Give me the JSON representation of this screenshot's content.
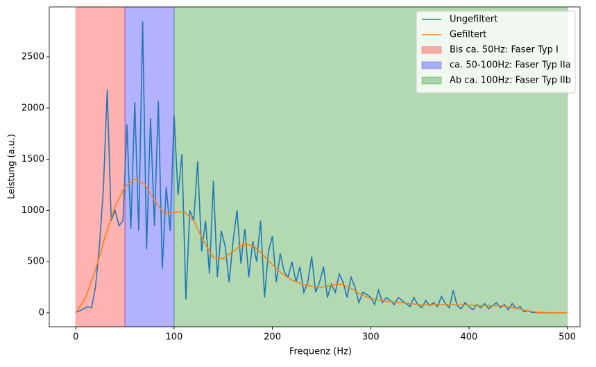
{
  "chart_data": {
    "type": "line",
    "xlabel": "Frequenz (Hz)",
    "ylabel": "Leistung (a.u.)",
    "xlim": [
      -27,
      513
    ],
    "ylim": [
      -136,
      2988
    ],
    "xticks": [
      0,
      100,
      200,
      300,
      400,
      500
    ],
    "yticks": [
      0,
      500,
      1000,
      1500,
      2000,
      2500
    ],
    "legend": "upper right",
    "spans": [
      {
        "label": "Bis ca. 50Hz: Faser Typ I",
        "x0": 0,
        "x1": 50,
        "color": "#ff0000"
      },
      {
        "label": "ca. 50-100Hz: Faser Typ IIa",
        "x0": 50,
        "x1": 100,
        "color": "#0000ff"
      },
      {
        "label": "Ab ca. 100Hz: Faser Typ IIb",
        "x0": 100,
        "x1": 500,
        "color": "#008000"
      }
    ],
    "series": [
      {
        "name": "Ungefiltert",
        "color": "#1f77b4",
        "x": [
          0,
          4,
          8,
          12,
          16,
          20,
          24,
          28,
          32,
          36,
          40,
          44,
          48,
          52,
          56,
          60,
          64,
          68,
          72,
          76,
          80,
          84,
          88,
          92,
          96,
          100,
          104,
          108,
          112,
          116,
          120,
          124,
          128,
          132,
          136,
          140,
          144,
          148,
          152,
          156,
          160,
          164,
          168,
          172,
          176,
          180,
          184,
          188,
          192,
          196,
          200,
          204,
          208,
          212,
          216,
          220,
          224,
          228,
          232,
          236,
          240,
          244,
          248,
          252,
          256,
          260,
          264,
          268,
          272,
          276,
          280,
          284,
          288,
          292,
          296,
          300,
          304,
          308,
          312,
          316,
          320,
          324,
          328,
          332,
          336,
          340,
          344,
          348,
          352,
          356,
          360,
          364,
          368,
          372,
          376,
          380,
          384,
          388,
          392,
          396,
          400,
          404,
          408,
          412,
          416,
          420,
          424,
          428,
          432,
          436,
          440,
          444,
          448,
          452,
          456,
          460,
          464,
          468,
          472,
          476,
          480,
          484,
          488,
          492,
          496,
          500
        ],
        "values": [
          5,
          20,
          40,
          60,
          50,
          250,
          650,
          1200,
          2180,
          900,
          1000,
          850,
          900,
          1840,
          820,
          2060,
          800,
          2850,
          620,
          1900,
          850,
          2070,
          430,
          1230,
          800,
          1930,
          1150,
          1550,
          130,
          1000,
          900,
          1480,
          600,
          900,
          380,
          1290,
          350,
          800,
          650,
          300,
          700,
          1000,
          480,
          820,
          350,
          700,
          500,
          900,
          150,
          600,
          750,
          300,
          580,
          400,
          350,
          500,
          300,
          450,
          200,
          300,
          550,
          200,
          300,
          450,
          150,
          280,
          200,
          380,
          300,
          150,
          350,
          250,
          100,
          200,
          180,
          150,
          80,
          220,
          100,
          150,
          120,
          80,
          150,
          120,
          90,
          60,
          150,
          80,
          50,
          120,
          70,
          100,
          60,
          160,
          90,
          50,
          220,
          70,
          40,
          100,
          60,
          30,
          80,
          50,
          90,
          40,
          70,
          100,
          50,
          80,
          30,
          90,
          40,
          60,
          10,
          20,
          5,
          3,
          2,
          1,
          1,
          1,
          1,
          1,
          1,
          1
        ]
      },
      {
        "name": "Gefiltert",
        "color": "#ff7f0e",
        "x": [
          0,
          10,
          20,
          30,
          40,
          50,
          60,
          70,
          80,
          90,
          100,
          110,
          120,
          130,
          140,
          150,
          160,
          170,
          180,
          190,
          200,
          210,
          220,
          230,
          240,
          250,
          260,
          270,
          280,
          290,
          300,
          310,
          320,
          330,
          340,
          350,
          360,
          370,
          380,
          390,
          400,
          410,
          420,
          430,
          440,
          450,
          460,
          470,
          480,
          490,
          500
        ],
        "values": [
          0,
          150,
          420,
          750,
          1040,
          1230,
          1310,
          1260,
          1100,
          970,
          980,
          990,
          900,
          700,
          540,
          530,
          600,
          670,
          660,
          570,
          470,
          380,
          320,
          280,
          260,
          250,
          270,
          280,
          240,
          180,
          140,
          120,
          110,
          100,
          90,
          80,
          80,
          80,
          80,
          80,
          75,
          70,
          70,
          70,
          60,
          40,
          20,
          5,
          2,
          1,
          1
        ]
      }
    ]
  }
}
